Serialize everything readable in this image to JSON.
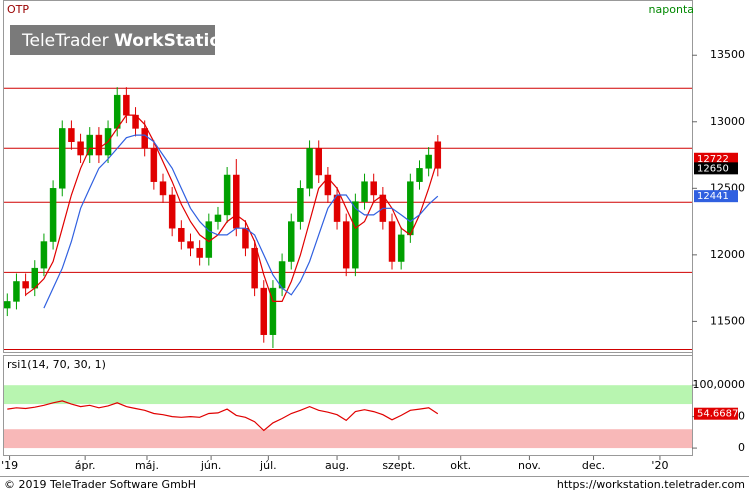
{
  "logo": [
    "TeleTrader",
    "WorkStation"
  ],
  "footer": {
    "copyright": "© 2019 TeleTrader Software GmbH",
    "url": "https://workstation.teletrader.com"
  },
  "chart_data": [
    {
      "type": "candlestick",
      "title": "OTP",
      "interval": "naponta",
      "up_color": "#00a000",
      "down_color": "#e00000",
      "x": [
        1,
        5,
        9,
        13,
        17,
        21,
        25,
        29,
        33,
        37,
        41,
        45,
        49,
        53,
        57,
        61,
        65,
        69,
        73,
        77,
        81,
        85,
        89,
        93,
        97,
        101,
        105,
        109,
        113,
        117,
        121,
        125,
        129,
        133,
        137,
        141,
        145,
        149,
        153,
        157,
        161,
        165,
        169,
        173,
        177,
        181,
        185,
        189
      ],
      "open": [
        11600,
        11650,
        11800,
        11750,
        11900,
        12100,
        12500,
        12950,
        12850,
        12750,
        12900,
        12750,
        12950,
        13200,
        13050,
        12950,
        12800,
        12550,
        12450,
        12200,
        12100,
        12050,
        11980,
        12250,
        12300,
        12600,
        12200,
        12050,
        11750,
        11400,
        11750,
        11950,
        12250,
        12500,
        12800,
        12600,
        12450,
        12250,
        11900,
        12400,
        12550,
        12450,
        12250,
        11950,
        12150,
        12550,
        12650,
        12850
      ],
      "high": [
        11710,
        11860,
        11860,
        11960,
        12160,
        12560,
        13010,
        13010,
        12910,
        12960,
        12960,
        13010,
        13260,
        13260,
        13110,
        13010,
        12860,
        12610,
        12510,
        12260,
        12160,
        12110,
        12310,
        12360,
        12660,
        12720,
        12260,
        12110,
        11810,
        11810,
        12010,
        12310,
        12560,
        12860,
        12860,
        12660,
        12510,
        12310,
        12460,
        12610,
        12610,
        12510,
        12310,
        12210,
        12610,
        12710,
        12810,
        12900
      ],
      "low": [
        11540,
        11590,
        11690,
        11690,
        11840,
        12040,
        12440,
        12790,
        12690,
        12690,
        12690,
        12690,
        12890,
        12990,
        12890,
        12740,
        12490,
        12390,
        12140,
        12040,
        11990,
        11920,
        11920,
        12190,
        12240,
        12140,
        11990,
        11690,
        11340,
        11300,
        11690,
        11890,
        12190,
        12440,
        12540,
        12390,
        12190,
        11840,
        11840,
        12340,
        12390,
        12190,
        11890,
        11890,
        12090,
        12490,
        12590,
        12590
      ],
      "close": [
        11650,
        11800,
        11750,
        11900,
        12100,
        12500,
        12950,
        12850,
        12750,
        12900,
        12750,
        12950,
        13200,
        13050,
        12950,
        12800,
        12550,
        12450,
        12200,
        12100,
        12050,
        11980,
        12250,
        12300,
        12600,
        12200,
        12050,
        11750,
        11400,
        11750,
        11950,
        12250,
        12500,
        12800,
        12600,
        12450,
        12250,
        11900,
        12400,
        12550,
        12450,
        12250,
        11950,
        12150,
        12550,
        12650,
        12750,
        12650
      ],
      "series": [
        {
          "color": "#e00000",
          "values": [
            null,
            null,
            11700,
            11750,
            11820,
            11950,
            12200,
            12450,
            12650,
            12800,
            12800,
            12850,
            12950,
            13050,
            13050,
            12980,
            12850,
            12700,
            12550,
            12380,
            12250,
            12150,
            12100,
            12150,
            12250,
            12300,
            12250,
            12100,
            11850,
            11650,
            11650,
            11800,
            12000,
            12250,
            12500,
            12580,
            12500,
            12350,
            12200,
            12250,
            12400,
            12450,
            12350,
            12200,
            12150,
            12300,
            12500,
            12722
          ]
        },
        {
          "color": "#3060e0",
          "values": [
            null,
            null,
            null,
            null,
            11600,
            11750,
            11900,
            12100,
            12350,
            12500,
            12650,
            12720,
            12800,
            12880,
            12900,
            12900,
            12850,
            12750,
            12650,
            12500,
            12350,
            12250,
            12180,
            12150,
            12150,
            12200,
            12200,
            12150,
            12000,
            11850,
            11750,
            11700,
            11800,
            11950,
            12150,
            12350,
            12450,
            12450,
            12350,
            12300,
            12300,
            12350,
            12350,
            12300,
            12250,
            12300,
            12380,
            12441
          ]
        }
      ],
      "reference_lines": [
        13252,
        12801,
        12395,
        11868,
        11289
      ],
      "reference_color": "#d00000",
      "xlim": [
        0,
        300
      ],
      "xticks": [
        {
          "value": 2,
          "label": "'19"
        },
        {
          "value": 35,
          "label": "ápr."
        },
        {
          "value": 62,
          "label": "máj."
        },
        {
          "value": 90,
          "label": "jún."
        },
        {
          "value": 115,
          "label": "júl."
        },
        {
          "value": 145,
          "label": "aug."
        },
        {
          "value": 172,
          "label": "szept."
        },
        {
          "value": 199,
          "label": "okt."
        },
        {
          "value": 229,
          "label": "nov."
        },
        {
          "value": 257,
          "label": "dec."
        },
        {
          "value": 286,
          "label": "'20"
        }
      ],
      "ylim": [
        11270,
        13900
      ],
      "yticks": [
        11500,
        12000,
        12500,
        13000,
        13500
      ]
    },
    {
      "type": "line",
      "title": "rsi1(14, 70, 30, 1)",
      "color": "#e00000",
      "values": [
        62,
        64,
        63,
        65,
        68,
        72,
        75,
        70,
        66,
        68,
        64,
        67,
        72,
        66,
        63,
        60,
        55,
        53,
        50,
        49,
        50,
        49,
        55,
        56,
        62,
        52,
        49,
        42,
        28,
        40,
        47,
        55,
        60,
        66,
        60,
        57,
        53,
        44,
        58,
        61,
        58,
        53,
        45,
        52,
        60,
        62,
        64,
        54.6687
      ],
      "bands": [
        {
          "from": 70,
          "to": 100,
          "color": "#b8f5b0"
        },
        {
          "from": 0,
          "to": 30,
          "color": "#f8b8b8"
        }
      ],
      "ylim": [
        -11,
        148
      ],
      "yticks": [
        {
          "value": 100,
          "label": "100,0000"
        },
        50,
        0
      ]
    }
  ]
}
